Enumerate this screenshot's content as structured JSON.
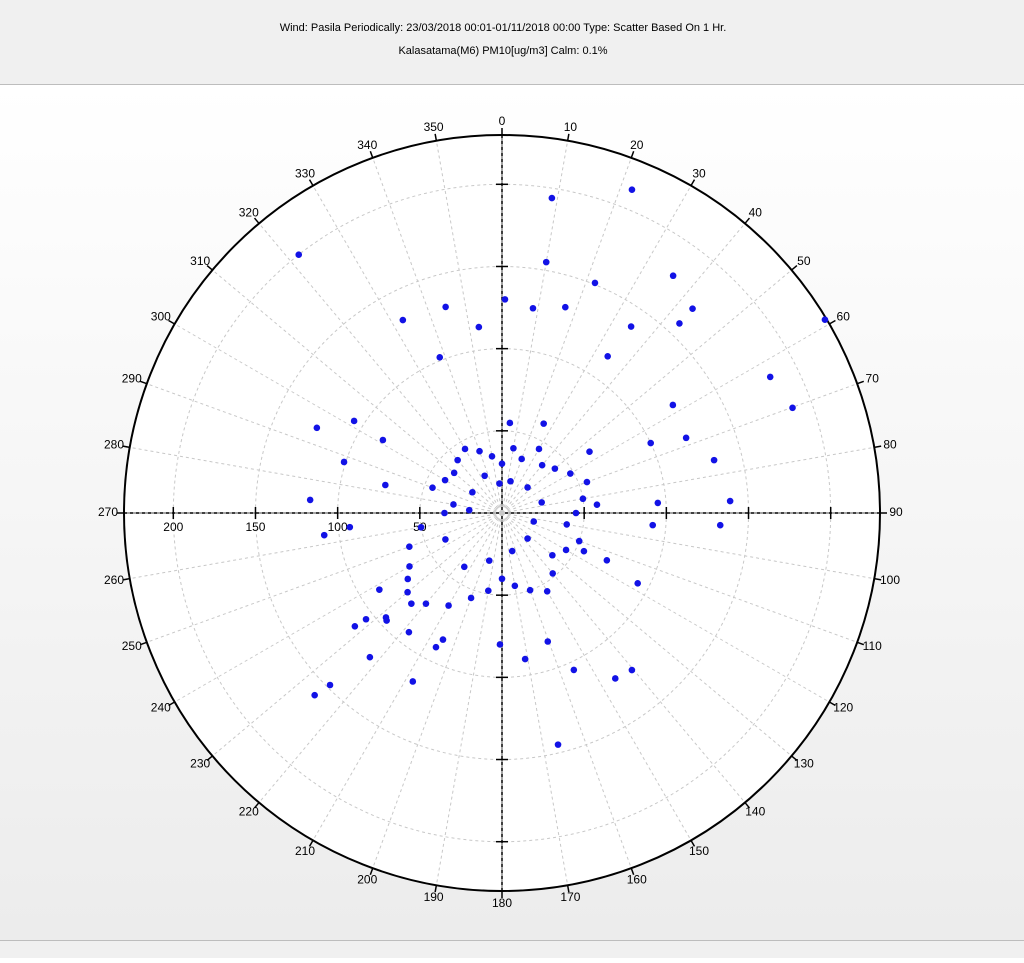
{
  "chart_data": {
    "type": "polar-scatter",
    "title": "Wind: Pasila  Periodically: 23/03/2018 00:01-01/11/2018 00:00  Type: Scatter Based On 1 Hr.",
    "subtitle": "Kalasatama(M6) PM10[ug/m3]   Calm: 0.1%",
    "color": "#1212e6",
    "grid": true,
    "rlim": [
      0,
      230
    ],
    "rticks": [
      50,
      100,
      150,
      200
    ],
    "thetaticks": [
      0,
      10,
      20,
      30,
      40,
      50,
      60,
      70,
      80,
      90,
      100,
      110,
      120,
      130,
      140,
      150,
      160,
      170,
      180,
      190,
      200,
      210,
      220,
      230,
      240,
      250,
      260,
      270,
      280,
      290,
      300,
      310,
      320,
      330,
      340,
      350
    ],
    "theta": [
      21.9,
      9,
      321.8,
      59.1,
      63.1,
      70.1,
      35.8,
      43,
      10,
      22,
      0.8,
      332.8,
      294.7,
      273.9,
      262.9,
      264.7,
      287.9,
      301.9,
      225.8,
      225,
      222.5,
      207.9,
      206.2,
      166.4,
      155.4,
      145.6,
      140.4,
      117.4,
      93.2,
      87,
      76,
      67.8,
      64.8,
      57.7,
      34.7,
      43.1,
      34,
      180.9,
      171,
      160.4,
      344.7,
      352.9,
      338.2,
      8.6,
      17.1,
      94.6,
      86.3,
      114.3,
      227,
      232.4,
      301.5,
      283.5,
      0,
      10,
      20,
      30,
      40,
      50,
      60,
      70,
      80,
      90,
      100,
      110,
      120,
      130,
      140,
      150,
      160,
      170,
      180,
      190,
      200,
      210,
      220,
      225,
      230,
      235,
      240,
      250,
      260,
      270,
      280,
      290,
      300,
      310,
      320,
      330,
      340,
      350,
      15,
      45,
      75,
      105,
      135,
      165,
      195,
      215,
      245,
      275,
      305,
      335,
      355,
      5,
      25,
      55,
      85,
      115,
      205,
      228,
      232,
      238,
      218
    ],
    "r": [
      212,
      194,
      200,
      229,
      183,
      188,
      178,
      170,
      155,
      151,
      130,
      132,
      124,
      117,
      109,
      93,
      101,
      106,
      159,
      148,
      119,
      116,
      91,
      145,
      105,
      122,
      124,
      93,
      133,
      139,
      133,
      121,
      100,
      123,
      138,
      158,
      115,
      80,
      90,
      83,
      130,
      114,
      102,
      126,
      131,
      92,
      95,
      70,
      96,
      113,
      85,
      73,
      30,
      40,
      35,
      45,
      38,
      42,
      48,
      55,
      50,
      45,
      40,
      50,
      45,
      40,
      48,
      55,
      50,
      45,
      40,
      48,
      55,
      65,
      72,
      78,
      75,
      70,
      65,
      60,
      50,
      35,
      30,
      45,
      40,
      38,
      42,
      45,
      40,
      35,
      20,
      22,
      25,
      20,
      22,
      24,
      30,
      40,
      38,
      20,
      22,
      25,
      18,
      55,
      60,
      65,
      58,
      55,
      85,
      95,
      105,
      88,
      92
    ]
  }
}
